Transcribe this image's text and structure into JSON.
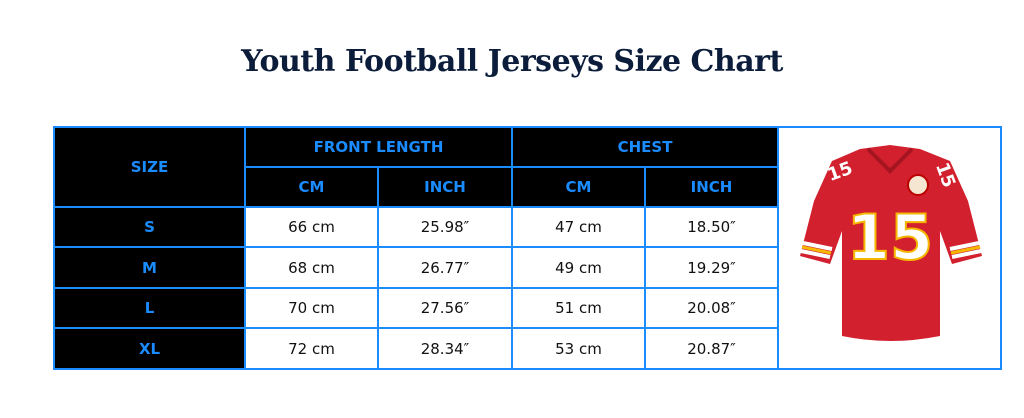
{
  "title": "Youth Football Jerseys Size Chart",
  "header": {
    "size": "SIZE",
    "front_length": "FRONT LENGTH",
    "chest": "CHEST",
    "cm": "CM",
    "inch": "INCH"
  },
  "rows": [
    {
      "size": "S",
      "fl_cm": "66 cm",
      "fl_inch": "25.98″",
      "ch_cm": "47 cm",
      "ch_inch": "18.50″"
    },
    {
      "size": "M",
      "fl_cm": "68 cm",
      "fl_inch": "26.77″",
      "ch_cm": "49 cm",
      "ch_inch": "19.29″"
    },
    {
      "size": "L",
      "fl_cm": "70 cm",
      "fl_inch": "27.56″",
      "ch_cm": "51 cm",
      "ch_inch": "20.08″"
    },
    {
      "size": "XL",
      "fl_cm": "72 cm",
      "fl_inch": "28.34″",
      "ch_cm": "53 cm",
      "ch_inch": "20.87″"
    }
  ],
  "jersey": {
    "number": "15",
    "color": "#d3202e",
    "accent": "#f5b800"
  },
  "colors": {
    "border": "#1a8cff",
    "header_bg": "#000000",
    "title": "#0b1d3a"
  }
}
